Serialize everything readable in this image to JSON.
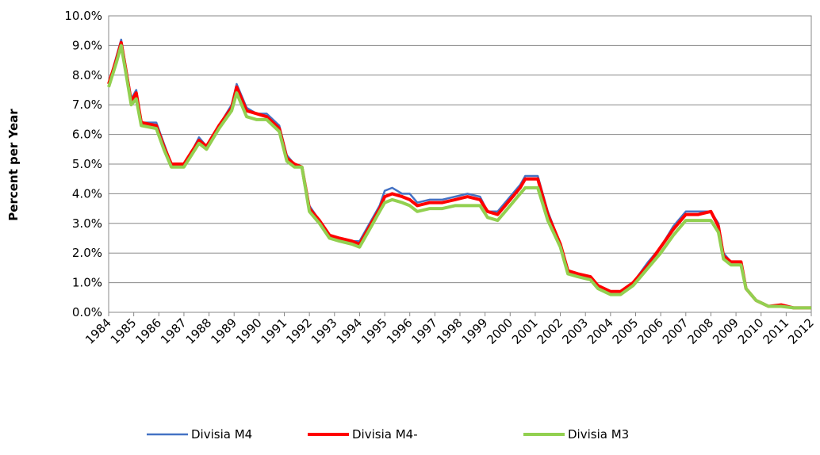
{
  "chart_data": {
    "type": "line",
    "y_label": "Percent per Year",
    "xlim": [
      1984,
      2012
    ],
    "xticks": [
      1984,
      1985,
      1986,
      1987,
      1988,
      1989,
      1990,
      1991,
      1992,
      1993,
      1994,
      1995,
      1996,
      1997,
      1998,
      1999,
      2000,
      2001,
      2002,
      2003,
      2004,
      2005,
      2006,
      2007,
      2008,
      2009,
      2010,
      2011,
      2012
    ],
    "ylim": [
      0,
      10
    ],
    "yticks": [
      {
        "value": 0,
        "label": "0.0%"
      },
      {
        "value": 1,
        "label": "1.0%"
      },
      {
        "value": 2,
        "label": "2.0%"
      },
      {
        "value": 3,
        "label": "3.0%"
      },
      {
        "value": 4,
        "label": "4.0%"
      },
      {
        "value": 5,
        "label": "5.0%"
      },
      {
        "value": 6,
        "label": "6.0%"
      },
      {
        "value": 7,
        "label": "7.0%"
      },
      {
        "value": 8,
        "label": "8.0%"
      },
      {
        "value": 9,
        "label": "9.0%"
      },
      {
        "value": 10,
        "label": "10.0%"
      }
    ],
    "grid": true,
    "legend": "bottom",
    "x": [
      1984.0,
      1984.3,
      1984.5,
      1984.7,
      1984.9,
      1985.1,
      1985.3,
      1985.9,
      1986.2,
      1986.5,
      1987.0,
      1987.3,
      1987.6,
      1987.9,
      1988.4,
      1988.9,
      1989.1,
      1989.5,
      1989.9,
      1990.3,
      1990.8,
      1991.1,
      1991.4,
      1991.7,
      1992.0,
      1992.4,
      1992.8,
      1993.2,
      1993.7,
      1994.0,
      1994.4,
      1994.8,
      1995.0,
      1995.3,
      1995.7,
      1996.0,
      1996.3,
      1996.8,
      1997.3,
      1997.8,
      1998.3,
      1998.8,
      1999.1,
      1999.5,
      2000.0,
      2000.4,
      2000.6,
      2001.1,
      2001.5,
      2002.0,
      2002.3,
      2002.7,
      2003.2,
      2003.5,
      2004.0,
      2004.4,
      2004.9,
      2005.5,
      2006.0,
      2006.5,
      2007.0,
      2007.5,
      2008.0,
      2008.3,
      2008.5,
      2008.8,
      2009.2,
      2009.4,
      2009.8,
      2010.3,
      2010.8,
      2011.3,
      2012.0
    ],
    "series": [
      {
        "name": "Divisia M4",
        "color": "#4472c4",
        "width": 2.5,
        "values": [
          7.7,
          8.6,
          9.2,
          8.2,
          7.2,
          7.5,
          6.4,
          6.4,
          5.7,
          5.0,
          5.0,
          5.4,
          5.9,
          5.6,
          6.3,
          7.0,
          7.7,
          6.9,
          6.7,
          6.7,
          6.3,
          5.3,
          5.0,
          4.9,
          3.6,
          3.1,
          2.6,
          2.5,
          2.4,
          2.4,
          3.0,
          3.6,
          4.1,
          4.2,
          4.0,
          4.0,
          3.7,
          3.8,
          3.8,
          3.9,
          4.0,
          3.9,
          3.4,
          3.4,
          3.9,
          4.3,
          4.6,
          4.6,
          3.4,
          2.3,
          1.4,
          1.3,
          1.2,
          0.9,
          0.7,
          0.7,
          1.0,
          1.7,
          2.2,
          2.9,
          3.4,
          3.4,
          3.4,
          3.0,
          2.0,
          1.7,
          1.7,
          0.8,
          0.4,
          0.2,
          0.25,
          0.15,
          0.15
        ]
      },
      {
        "name": "Divisia M4-",
        "color": "#ff0000",
        "width": 4,
        "values": [
          7.7,
          8.5,
          9.1,
          8.1,
          7.1,
          7.4,
          6.4,
          6.3,
          5.6,
          5.0,
          5.0,
          5.4,
          5.8,
          5.6,
          6.3,
          6.9,
          7.6,
          6.8,
          6.7,
          6.6,
          6.2,
          5.2,
          5.0,
          4.9,
          3.5,
          3.1,
          2.6,
          2.5,
          2.4,
          2.3,
          2.9,
          3.5,
          3.9,
          4.0,
          3.9,
          3.8,
          3.6,
          3.7,
          3.7,
          3.8,
          3.9,
          3.8,
          3.4,
          3.3,
          3.8,
          4.2,
          4.5,
          4.5,
          3.3,
          2.3,
          1.4,
          1.3,
          1.2,
          0.9,
          0.7,
          0.7,
          1.0,
          1.6,
          2.2,
          2.8,
          3.3,
          3.3,
          3.4,
          2.9,
          1.9,
          1.7,
          1.7,
          0.8,
          0.4,
          0.2,
          0.25,
          0.15,
          0.15
        ]
      },
      {
        "name": "Divisia M3",
        "color": "#92d050",
        "width": 4,
        "values": [
          7.6,
          8.4,
          9.0,
          8.0,
          7.0,
          7.2,
          6.3,
          6.2,
          5.5,
          4.9,
          4.9,
          5.3,
          5.7,
          5.5,
          6.2,
          6.8,
          7.4,
          6.6,
          6.5,
          6.5,
          6.1,
          5.1,
          4.9,
          4.9,
          3.4,
          3.0,
          2.5,
          2.4,
          2.3,
          2.2,
          2.8,
          3.4,
          3.7,
          3.8,
          3.7,
          3.6,
          3.4,
          3.5,
          3.5,
          3.6,
          3.6,
          3.6,
          3.2,
          3.1,
          3.6,
          4.0,
          4.2,
          4.2,
          3.1,
          2.2,
          1.3,
          1.2,
          1.1,
          0.8,
          0.6,
          0.6,
          0.9,
          1.5,
          2.0,
          2.6,
          3.1,
          3.1,
          3.1,
          2.7,
          1.8,
          1.6,
          1.6,
          0.8,
          0.4,
          0.2,
          0.2,
          0.15,
          0.15
        ]
      }
    ]
  }
}
